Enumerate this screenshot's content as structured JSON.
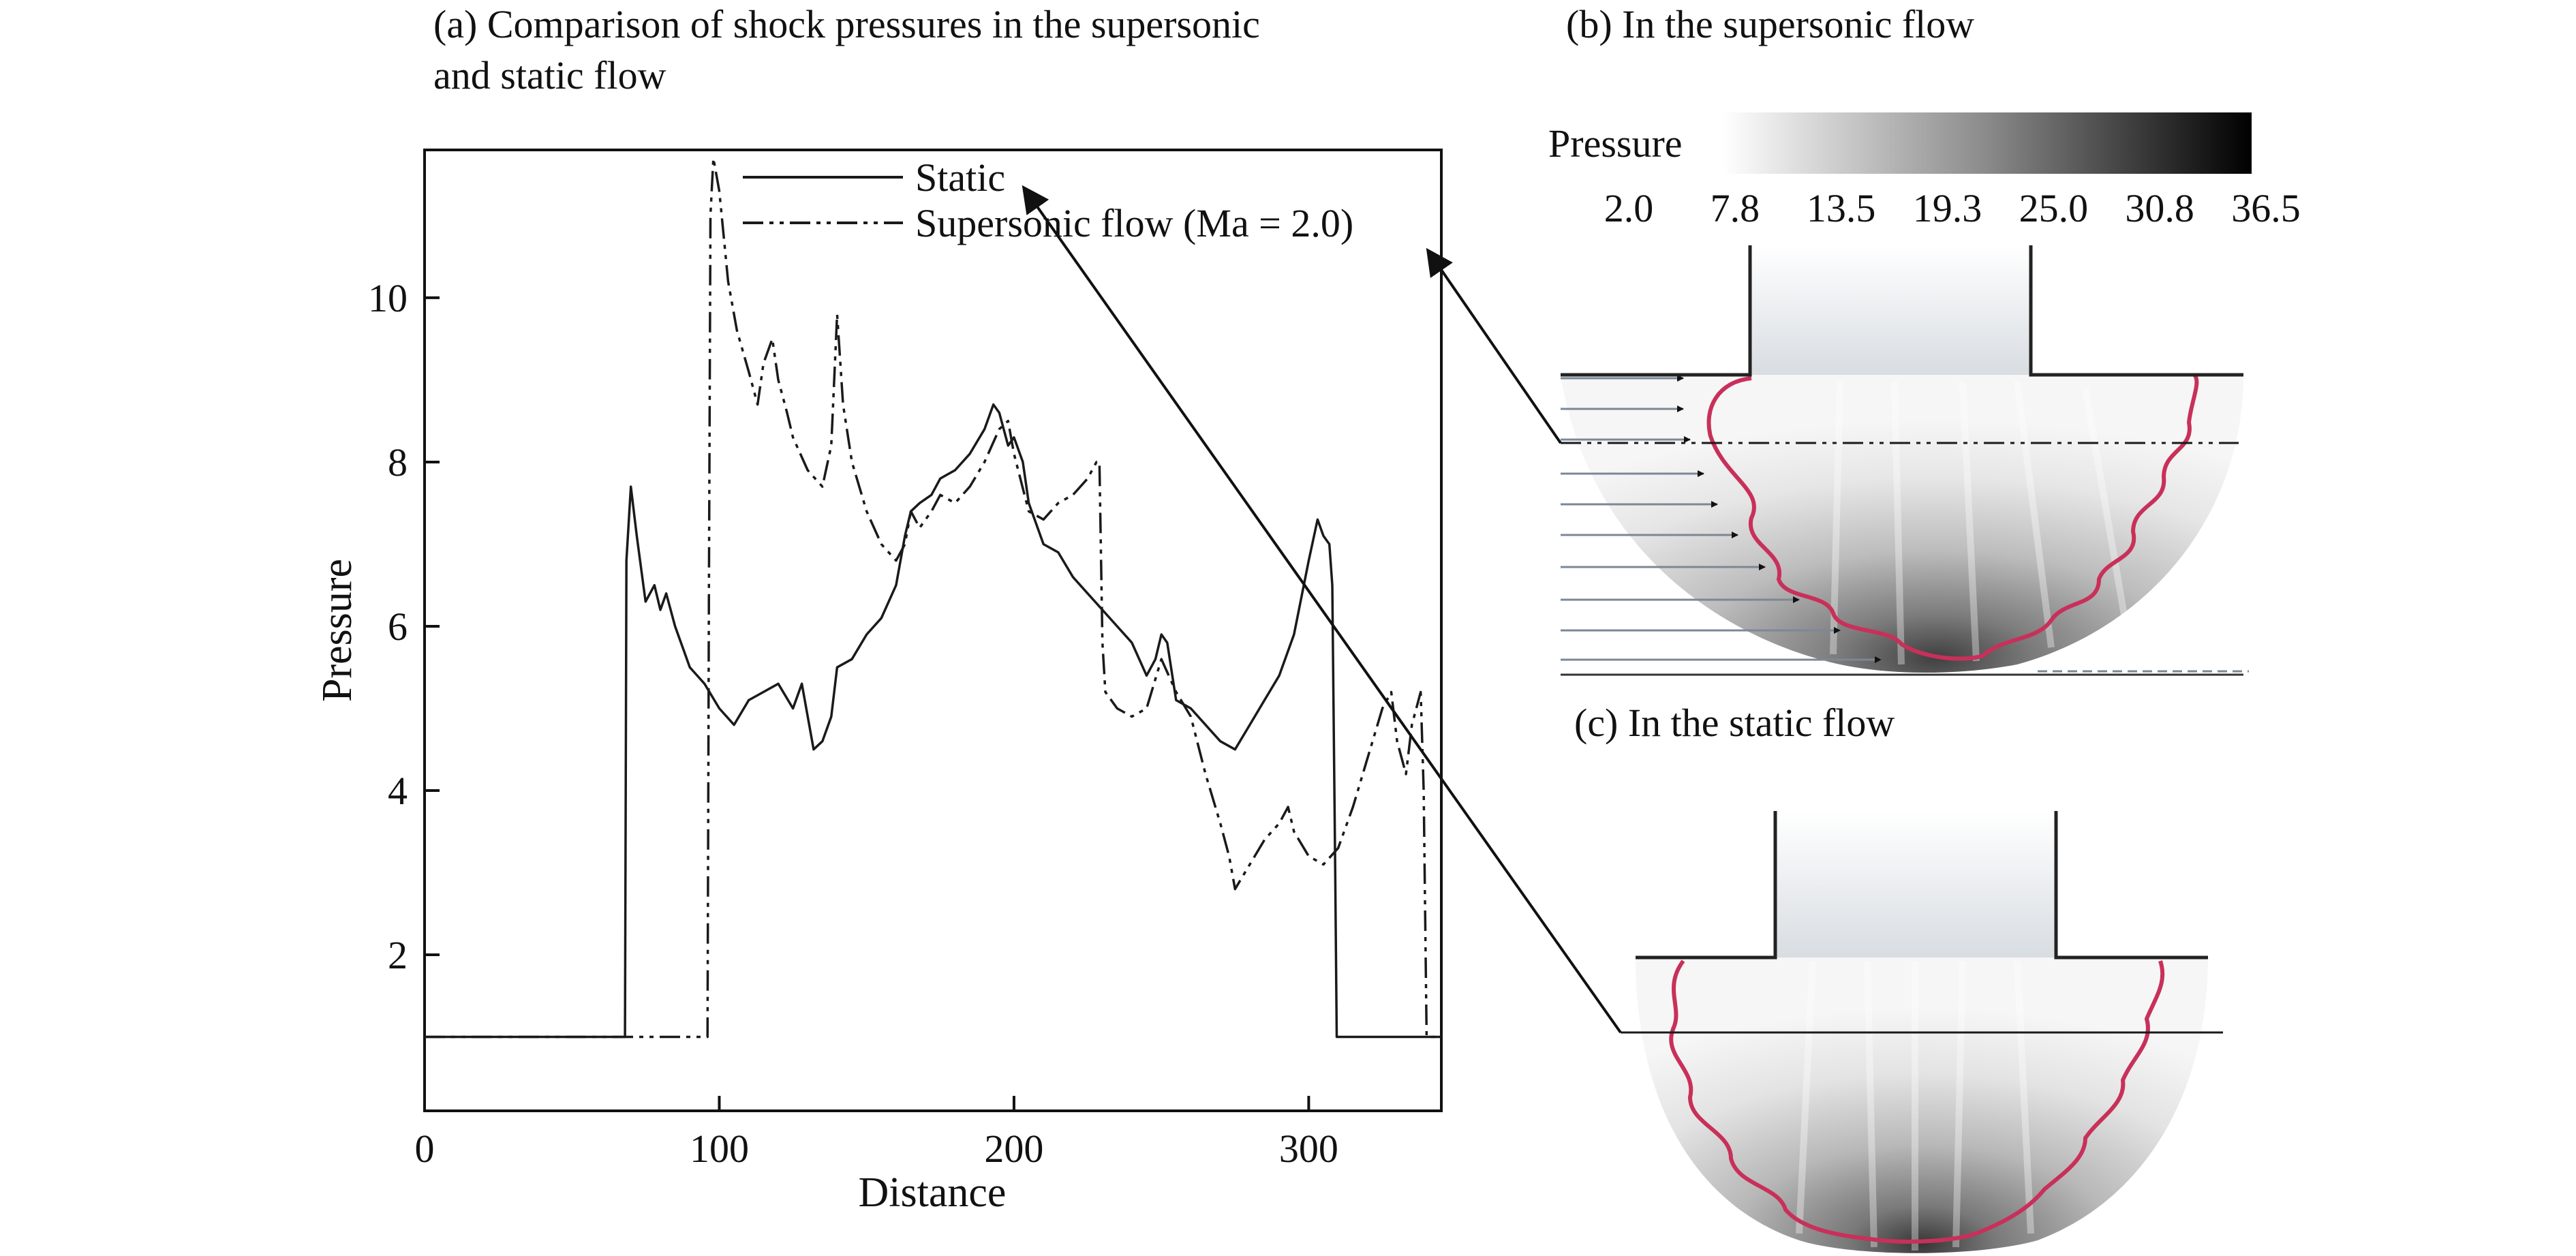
{
  "panel_a": {
    "title_line1": "(a) Comparison of shock pressures in the supersonic",
    "title_line2": "and static flow"
  },
  "panel_b": {
    "title": "(b) In the supersonic flow"
  },
  "panel_c": {
    "title": "(c) In the static flow"
  },
  "colorbar": {
    "label": "Pressure",
    "ticks": [
      "2.0",
      "7.8",
      "13.5",
      "19.3",
      "25.0",
      "30.8",
      "36.5"
    ],
    "color_low": "#ffffff",
    "color_high": "#000000"
  },
  "colors": {
    "line": "#1a1a1a",
    "shock_front": "#c8305a",
    "axis": "#111111"
  },
  "chart_data": {
    "type": "line",
    "title": "(a) Comparison of shock pressures in the supersonic and static flow",
    "xlabel": "Distance",
    "ylabel": "Pressure",
    "xlim": [
      0,
      345
    ],
    "ylim": [
      0.1,
      11.8
    ],
    "xticks": [
      0,
      100,
      200,
      300
    ],
    "yticks": [
      2,
      4,
      6,
      8,
      10
    ],
    "grid": false,
    "legend_position": "top-center",
    "series": [
      {
        "name": "Static",
        "style": "solid",
        "x": [
          0,
          68,
          68.5,
          70,
          72,
          75,
          78,
          80,
          82,
          85,
          88,
          90,
          95,
          100,
          105,
          110,
          115,
          120,
          125,
          128,
          132,
          135,
          138,
          140,
          145,
          150,
          155,
          160,
          163,
          165,
          168,
          172,
          175,
          180,
          185,
          190,
          193,
          195,
          198,
          200,
          203,
          205,
          210,
          215,
          220,
          225,
          230,
          235,
          240,
          245,
          248,
          250,
          252,
          255,
          260,
          265,
          270,
          275,
          280,
          285,
          290,
          295,
          300,
          303,
          305,
          307,
          308,
          309,
          309.5,
          310,
          320,
          330,
          340,
          345
        ],
        "y": [
          1.0,
          1.0,
          6.8,
          7.7,
          7.1,
          6.3,
          6.5,
          6.2,
          6.4,
          6.0,
          5.7,
          5.5,
          5.3,
          5.0,
          4.8,
          5.1,
          5.2,
          5.3,
          5.0,
          5.3,
          4.5,
          4.6,
          4.9,
          5.5,
          5.6,
          5.9,
          6.1,
          6.5,
          7.1,
          7.4,
          7.5,
          7.6,
          7.8,
          7.9,
          8.1,
          8.4,
          8.7,
          8.6,
          8.2,
          8.3,
          8.0,
          7.5,
          7.0,
          6.9,
          6.6,
          6.4,
          6.2,
          6.0,
          5.8,
          5.4,
          5.6,
          5.9,
          5.8,
          5.1,
          5.0,
          4.8,
          4.6,
          4.5,
          4.8,
          5.1,
          5.4,
          5.9,
          6.8,
          7.3,
          7.1,
          7.0,
          6.5,
          3.0,
          1.0,
          1.0,
          1.0,
          1.0,
          1.0,
          1.0
        ]
      },
      {
        "name": "Supersonic flow (Ma = 2.0)",
        "style": "dash-dot-dot",
        "x": [
          0,
          68,
          96,
          96.5,
          97,
          98,
          100,
          103,
          106,
          110,
          113,
          115,
          118,
          120,
          123,
          125,
          130,
          135,
          138,
          140,
          142,
          145,
          150,
          155,
          160,
          163,
          165,
          168,
          172,
          175,
          180,
          185,
          190,
          195,
          198,
          200,
          205,
          210,
          215,
          220,
          225,
          228,
          229,
          230,
          231,
          235,
          240,
          245,
          250,
          255,
          260,
          265,
          270,
          273,
          275,
          280,
          285,
          290,
          293,
          295,
          300,
          305,
          310,
          315,
          320,
          325,
          328,
          330,
          333,
          335,
          338,
          339,
          340,
          342,
          345
        ],
        "y": [
          1.0,
          1.0,
          1.0,
          6.5,
          11.0,
          11.7,
          11.3,
          10.2,
          9.6,
          9.1,
          8.7,
          9.2,
          9.5,
          9.0,
          8.6,
          8.3,
          7.9,
          7.7,
          8.2,
          9.8,
          8.7,
          8.0,
          7.4,
          7.0,
          6.8,
          7.0,
          7.4,
          7.2,
          7.4,
          7.6,
          7.5,
          7.7,
          8.0,
          8.4,
          8.5,
          8.1,
          7.4,
          7.3,
          7.5,
          7.6,
          7.8,
          8.0,
          8.0,
          5.8,
          5.2,
          5.0,
          4.9,
          5.0,
          5.6,
          5.2,
          4.9,
          4.2,
          3.6,
          3.2,
          2.8,
          3.1,
          3.4,
          3.6,
          3.8,
          3.5,
          3.2,
          3.1,
          3.3,
          3.8,
          4.4,
          5.0,
          5.2,
          4.6,
          4.2,
          4.8,
          5.2,
          4.0,
          1.0,
          1.0,
          1.0
        ]
      }
    ]
  }
}
